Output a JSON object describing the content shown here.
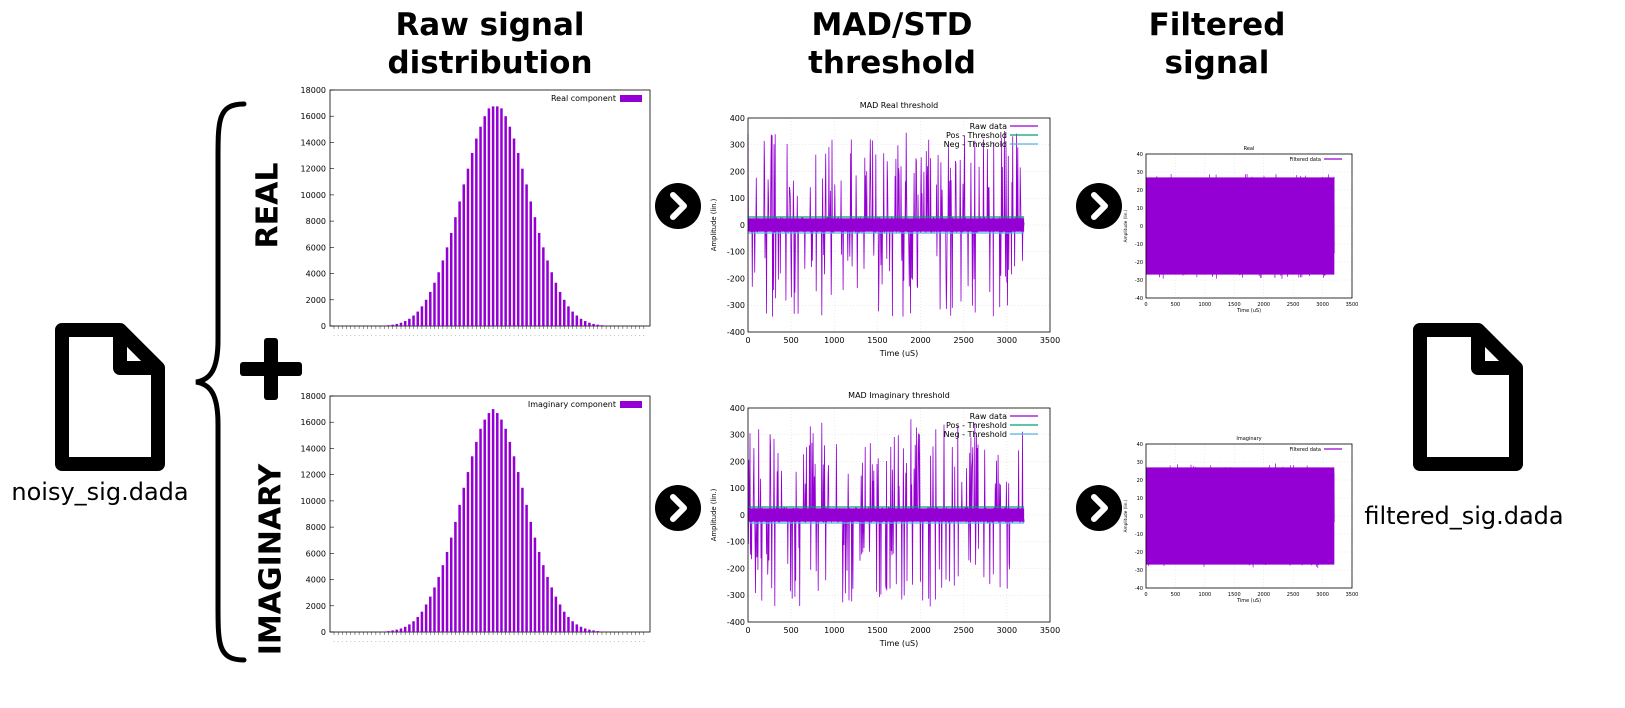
{
  "columns": {
    "raw": "Raw signal\ndistribution",
    "threshold": "MAD/STD\nthreshold",
    "filtered": "Filtered\nsignal"
  },
  "files": {
    "input": "noisy_sig.dada",
    "output": "filtered_sig.dada"
  },
  "rows": {
    "real": "REAL",
    "imag": "IMAGINARY"
  },
  "colors": {
    "purple": "#9400D3",
    "threshold_pos": "#009E73",
    "threshold_neg": "#56B4E9",
    "grid": "#d9d9d9"
  },
  "icons": [
    "file-icon",
    "plus-icon",
    "brace-icon",
    "arrow-right-circle-icon"
  ],
  "chart_data": [
    {
      "id": "hist_real",
      "type": "bar",
      "legend": [
        "Real component"
      ],
      "ylim": [
        0,
        18000
      ],
      "yticks": [
        0,
        2000,
        4000,
        6000,
        8000,
        10000,
        12000,
        14000,
        16000,
        18000
      ],
      "values": [
        0,
        0,
        0,
        0,
        0,
        0,
        0,
        0,
        0,
        0,
        0,
        0,
        30,
        60,
        100,
        160,
        250,
        380,
        550,
        800,
        1100,
        1500,
        2000,
        2600,
        3300,
        4100,
        5000,
        6000,
        7100,
        8300,
        9500,
        10800,
        12000,
        13200,
        14300,
        15200,
        16000,
        16600,
        16750,
        16750,
        16600,
        16000,
        15200,
        14300,
        13200,
        12000,
        10800,
        9500,
        8300,
        7100,
        6000,
        5000,
        4100,
        3300,
        2600,
        2000,
        1500,
        1100,
        800,
        550,
        380,
        250,
        160,
        100,
        60,
        30,
        0,
        0,
        0,
        0,
        0,
        0,
        0,
        0,
        0
      ]
    },
    {
      "id": "hist_imag",
      "type": "bar",
      "legend": [
        "Imaginary component"
      ],
      "ylim": [
        0,
        18000
      ],
      "yticks": [
        0,
        2000,
        4000,
        6000,
        8000,
        10000,
        12000,
        14000,
        16000,
        18000
      ],
      "values": [
        0,
        0,
        0,
        0,
        0,
        0,
        0,
        0,
        0,
        0,
        0,
        0,
        40,
        70,
        120,
        180,
        270,
        400,
        580,
        820,
        1150,
        1550,
        2100,
        2700,
        3400,
        4200,
        5100,
        6100,
        7200,
        8400,
        9700,
        11000,
        12200,
        13400,
        14500,
        15500,
        16200,
        16700,
        17000,
        16700,
        16200,
        15500,
        14500,
        13400,
        12200,
        11000,
        9700,
        8400,
        7200,
        6100,
        5100,
        4200,
        3400,
        2700,
        2100,
        1550,
        1150,
        820,
        580,
        400,
        270,
        180,
        120,
        70,
        40,
        0,
        0,
        0,
        0,
        0,
        0,
        0,
        0,
        0,
        0
      ]
    },
    {
      "id": "thr_real",
      "type": "line",
      "title": "MAD Real threshold",
      "xlabel": "Time (uS)",
      "ylabel": "Amplitude (lin.)",
      "xlim": [
        0,
        3500
      ],
      "ylim": [
        -400,
        400
      ],
      "xticks": [
        0,
        500,
        1000,
        1500,
        2000,
        2500,
        3000,
        3500
      ],
      "yticks": [
        -400,
        -300,
        -200,
        -100,
        0,
        100,
        200,
        300,
        400
      ],
      "series": [
        {
          "name": "Raw data",
          "x_range": [
            0,
            3200
          ],
          "amplitude_range": [
            -350,
            360
          ]
        },
        {
          "name": "Pos - Threshold",
          "value": 30
        },
        {
          "name": "Neg - Threshold",
          "value": -30
        }
      ]
    },
    {
      "id": "thr_imag",
      "type": "line",
      "title": "MAD Imaginary threshold",
      "xlabel": "Time (uS)",
      "ylabel": "Amplitude (lin.)",
      "xlim": [
        0,
        3500
      ],
      "ylim": [
        -400,
        400
      ],
      "xticks": [
        0,
        500,
        1000,
        1500,
        2000,
        2500,
        3000,
        3500
      ],
      "yticks": [
        -400,
        -300,
        -200,
        -100,
        0,
        100,
        200,
        300,
        400
      ],
      "series": [
        {
          "name": "Raw data",
          "x_range": [
            0,
            3200
          ],
          "amplitude_range": [
            -350,
            360
          ]
        },
        {
          "name": "Pos - Threshold",
          "value": 30
        },
        {
          "name": "Neg - Threshold",
          "value": -30
        }
      ]
    },
    {
      "id": "filt_real",
      "type": "line",
      "title": "Real",
      "xlabel": "Time (uS)",
      "ylabel": "Amplitude (lin.)",
      "xlim": [
        0,
        3500
      ],
      "ylim": [
        -40,
        40
      ],
      "xticks": [
        0,
        500,
        1000,
        1500,
        2000,
        2500,
        3000,
        3500
      ],
      "yticks": [
        -40,
        -30,
        -20,
        -10,
        0,
        10,
        20,
        30,
        40
      ],
      "series": [
        {
          "name": "Filtered data",
          "x_range": [
            0,
            3200
          ],
          "amplitude_range": [
            -30,
            30
          ]
        }
      ]
    },
    {
      "id": "filt_imag",
      "type": "line",
      "title": "Imaginary",
      "xlabel": "Time (uS)",
      "ylabel": "Amplitude (lin.)",
      "xlim": [
        0,
        3500
      ],
      "ylim": [
        -40,
        40
      ],
      "xticks": [
        0,
        500,
        1000,
        1500,
        2000,
        2500,
        3000,
        3500
      ],
      "yticks": [
        -40,
        -30,
        -20,
        -10,
        0,
        10,
        20,
        30,
        40
      ],
      "series": [
        {
          "name": "Filtered data",
          "x_range": [
            0,
            3200
          ],
          "amplitude_range": [
            -30,
            30
          ]
        }
      ]
    }
  ]
}
